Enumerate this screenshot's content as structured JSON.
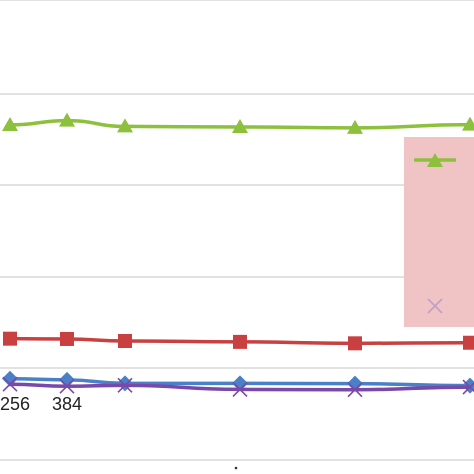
{
  "chart_data": {
    "type": "line",
    "title": "",
    "xlabel": "",
    "ylabel": "",
    "grid": true,
    "legend_placement": "right",
    "x": [
      0,
      1,
      2,
      3,
      4,
      5
    ],
    "x_tick_labels": [
      "256",
      "384",
      "",
      "",
      "",
      ""
    ],
    "ylim": [
      0,
      100
    ],
    "series": [
      {
        "name": "",
        "color": "#8dc03c",
        "marker": "triangle",
        "values": [
          84.5,
          86.0,
          84.0,
          83.8,
          83.5,
          84.6
        ]
      },
      {
        "name": "",
        "color": "#c84040",
        "marker": "square",
        "values": [
          10.8,
          10.7,
          10.0,
          9.7,
          9.2,
          9.4
        ]
      },
      {
        "name": "",
        "color": "#4a80c8",
        "marker": "diamond",
        "values": [
          -3.0,
          -3.4,
          -4.6,
          -4.6,
          -4.7,
          -5.4
        ]
      },
      {
        "name": "",
        "color": "#7a48a8",
        "marker": "x",
        "values": [
          -4.9,
          -5.6,
          -5.3,
          -6.7,
          -6.8,
          -5.9
        ]
      }
    ]
  },
  "legend": {
    "background": "#f0c4c4",
    "entries": [
      {
        "marker": "triangle",
        "color": "#8dc03c"
      },
      {
        "marker": "x",
        "color": "#c0a0c8"
      }
    ]
  }
}
